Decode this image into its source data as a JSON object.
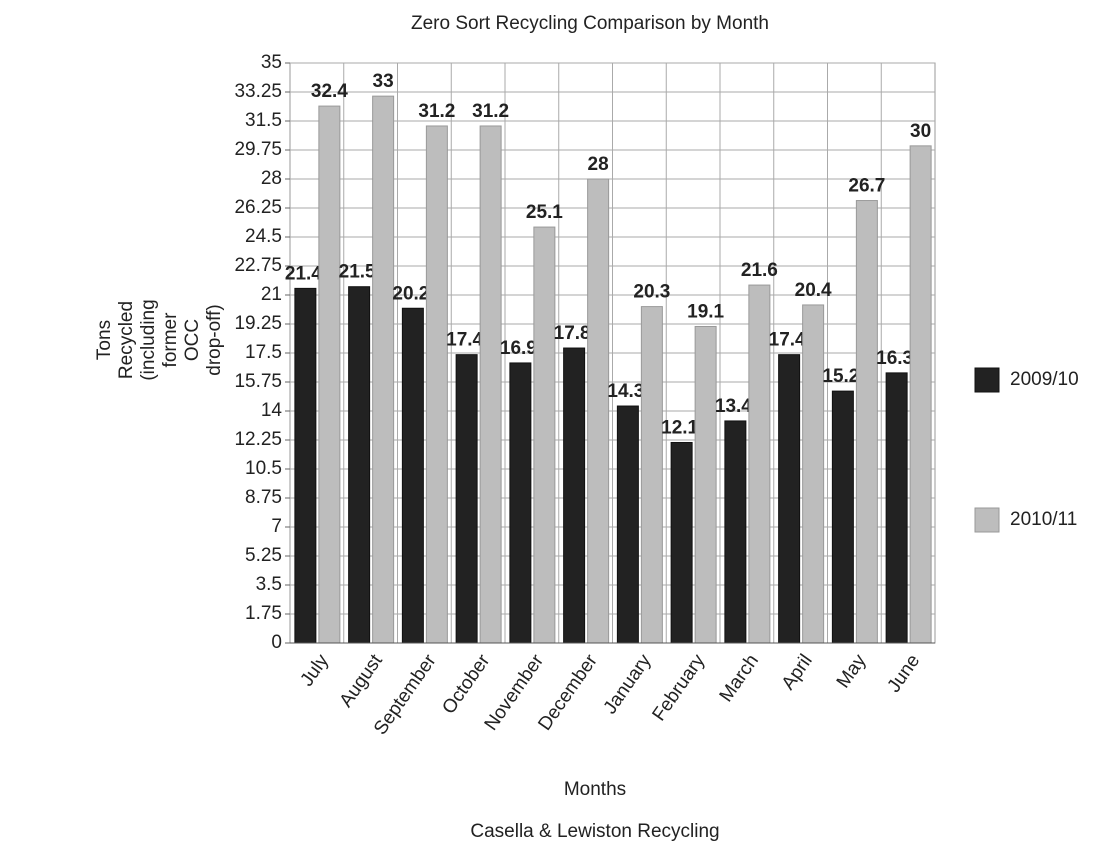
{
  "chart_data": {
    "type": "bar",
    "title": "Zero Sort Recycling Comparison by Month",
    "x_label": "Months",
    "y_label": "Tons Recycled (including former OCC drop-off)",
    "subtitle": "Casella & Lewiston Recycling",
    "categories": [
      "July",
      "August",
      "September",
      "October",
      "November",
      "December",
      "January",
      "February",
      "March",
      "April",
      "May",
      "June"
    ],
    "series": [
      {
        "name": "2009/10",
        "color": "#222222",
        "values": [
          21.4,
          21.5,
          20.2,
          17.4,
          16.9,
          17.8,
          14.3,
          12.1,
          13.4,
          17.4,
          15.2,
          16.3
        ]
      },
      {
        "name": "2010/11",
        "color": "#bdbdbd",
        "values": [
          32.4,
          33,
          31.2,
          31.2,
          25.1,
          28,
          20.3,
          19.1,
          21.6,
          20.4,
          26.7,
          30
        ]
      }
    ],
    "ylim": [
      0,
      35
    ],
    "yticks": [
      0,
      1.75,
      3.5,
      5.25,
      7,
      8.75,
      10.5,
      12.25,
      14,
      15.75,
      17.5,
      19.25,
      21,
      22.75,
      24.5,
      26.25,
      28,
      29.75,
      31.5,
      33.25,
      35
    ],
    "grid": true,
    "legend": "right"
  }
}
